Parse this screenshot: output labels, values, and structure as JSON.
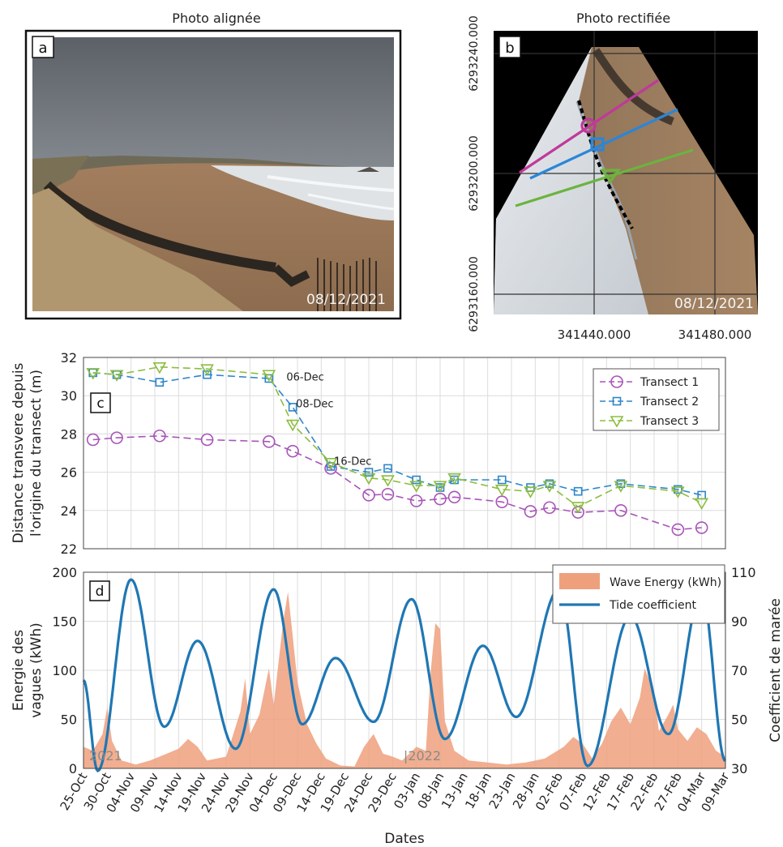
{
  "panels": {
    "a": {
      "letter": "a",
      "title": "Photo alignée",
      "date_stamp": "08/12/2021"
    },
    "b": {
      "letter": "b",
      "title": "Photo rectifiée",
      "date_stamp": "08/12/2021",
      "y_ticks": [
        "6293240.000",
        "6293200.000",
        "6293160.000"
      ],
      "x_ticks": [
        "341440.000",
        "341480.000"
      ],
      "transect_colors": [
        "#c0399a",
        "#2a86d8",
        "#6cb33e"
      ]
    }
  },
  "chart_data": [
    {
      "panel": "c",
      "type": "line",
      "ylabel": "Distance transvere depuis l'origine du transect (m)",
      "ylabel_lines": [
        "Distance transvere depuis",
        "l'origine du transect (m)"
      ],
      "ylim": [
        22,
        32
      ],
      "y_ticks": [
        22,
        24,
        26,
        28,
        30,
        32
      ],
      "grid": true,
      "legend_position": "top-right",
      "annotations": [
        {
          "text": "06-Dec",
          "x": "06-Dec",
          "y": 31.0
        },
        {
          "text": "08-Dec",
          "x": "08-Dec",
          "y": 29.6
        },
        {
          "text": "16-Dec",
          "x": "16-Dec",
          "y": 26.6
        }
      ],
      "series": [
        {
          "name": "Transect 1",
          "color": "#a855b8",
          "marker": "circle",
          "points": [
            [
              "27-Oct",
              27.7
            ],
            [
              "01-Nov",
              27.8
            ],
            [
              "10-Nov",
              27.9
            ],
            [
              "20-Nov",
              27.7
            ],
            [
              "03-Dec",
              27.6
            ],
            [
              "08-Dec",
              27.1
            ],
            [
              "16-Dec",
              26.2
            ],
            [
              "24-Dec",
              24.8
            ],
            [
              "28-Dec",
              24.85
            ],
            [
              "03-Jan",
              24.5
            ],
            [
              "08-Jan",
              24.6
            ],
            [
              "11-Jan",
              24.7
            ],
            [
              "21-Jan",
              24.45
            ],
            [
              "27-Jan",
              23.95
            ],
            [
              "31-Jan",
              24.15
            ],
            [
              "06-Feb",
              23.9
            ],
            [
              "15-Feb",
              24.0
            ],
            [
              "27-Feb",
              23.0
            ],
            [
              "04-Mar",
              23.1
            ]
          ]
        },
        {
          "name": "Transect 2",
          "color": "#2e86c9",
          "marker": "square",
          "points": [
            [
              "27-Oct",
              31.2
            ],
            [
              "01-Nov",
              31.1
            ],
            [
              "10-Nov",
              30.7
            ],
            [
              "20-Nov",
              31.1
            ],
            [
              "03-Dec",
              30.9
            ],
            [
              "08-Dec",
              29.4
            ],
            [
              "16-Dec",
              26.3
            ],
            [
              "24-Dec",
              26.0
            ],
            [
              "28-Dec",
              26.2
            ],
            [
              "03-Jan",
              25.6
            ],
            [
              "08-Jan",
              25.2
            ],
            [
              "11-Jan",
              25.6
            ],
            [
              "21-Jan",
              25.6
            ],
            [
              "27-Jan",
              25.2
            ],
            [
              "31-Jan",
              25.4
            ],
            [
              "06-Feb",
              25.0
            ],
            [
              "15-Feb",
              25.4
            ],
            [
              "27-Feb",
              25.1
            ],
            [
              "04-Mar",
              24.8
            ]
          ]
        },
        {
          "name": "Transect 3",
          "color": "#8cbd3f",
          "marker": "triangle",
          "points": [
            [
              "27-Oct",
              31.2
            ],
            [
              "01-Nov",
              31.1
            ],
            [
              "10-Nov",
              31.5
            ],
            [
              "20-Nov",
              31.4
            ],
            [
              "03-Dec",
              31.1
            ],
            [
              "08-Dec",
              28.5
            ],
            [
              "16-Dec",
              26.5
            ],
            [
              "24-Dec",
              25.7
            ],
            [
              "28-Dec",
              25.6
            ],
            [
              "03-Jan",
              25.3
            ],
            [
              "08-Jan",
              25.3
            ],
            [
              "11-Jan",
              25.7
            ],
            [
              "21-Jan",
              25.1
            ],
            [
              "27-Jan",
              25.0
            ],
            [
              "31-Jan",
              25.3
            ],
            [
              "06-Feb",
              24.2
            ],
            [
              "15-Feb",
              25.3
            ],
            [
              "27-Feb",
              25.0
            ],
            [
              "04-Mar",
              24.4
            ]
          ]
        }
      ]
    },
    {
      "panel": "d",
      "type": "area",
      "xlabel": "Dates",
      "ylabel": "Energie des vagues (kWh)",
      "ylabel_lines": [
        "Energie des",
        "vagues (kWh)"
      ],
      "ylabel_right": "Coefficient de marée",
      "ylim": [
        0,
        200
      ],
      "y_ticks": [
        0,
        50,
        100,
        150,
        200
      ],
      "ylim_right": [
        30,
        110
      ],
      "y_ticks_right": [
        30,
        50,
        70,
        90,
        110
      ],
      "x_start": "25-Oct",
      "x_end": "09-Mar",
      "x_ticks": [
        "25-Oct",
        "30-Oct",
        "04-Nov",
        "09-Nov",
        "14-Nov",
        "19-Nov",
        "24-Nov",
        "29-Nov",
        "04-Dec",
        "09-Dec",
        "14-Dec",
        "19-Dec",
        "24-Dec",
        "29-Dec",
        "03-Jan",
        "08-Jan",
        "13-Jan",
        "18-Jan",
        "23-Jan",
        "28-Jan",
        "02-Feb",
        "07-Feb",
        "12-Feb",
        "17-Feb",
        "22-Feb",
        "27-Feb",
        "04-Mar",
        "09-Mar"
      ],
      "year_labels": [
        {
          "text": "2021",
          "x": "25-Oct"
        },
        {
          "text": "|2022",
          "x": "01-Jan"
        }
      ],
      "grid": true,
      "legend_position": "top-right",
      "series": [
        {
          "name": "Wave Energy (kWh)",
          "color": "#eea07c",
          "kind": "area",
          "points": [
            [
              "25-Oct",
              22
            ],
            [
              "27-Oct",
              18
            ],
            [
              "29-Oct",
              35
            ],
            [
              "30-Oct",
              62
            ],
            [
              "31-Oct",
              28
            ],
            [
              "02-Nov",
              8
            ],
            [
              "05-Nov",
              4
            ],
            [
              "08-Nov",
              8
            ],
            [
              "11-Nov",
              14
            ],
            [
              "14-Nov",
              20
            ],
            [
              "16-Nov",
              30
            ],
            [
              "18-Nov",
              22
            ],
            [
              "20-Nov",
              8
            ],
            [
              "24-Nov",
              12
            ],
            [
              "27-Nov",
              58
            ],
            [
              "28-Nov",
              92
            ],
            [
              "29-Nov",
              35
            ],
            [
              "01-Dec",
              55
            ],
            [
              "03-Dec",
              102
            ],
            [
              "04-Dec",
              65
            ],
            [
              "06-Dec",
              150
            ],
            [
              "07-Dec",
              180
            ],
            [
              "08-Dec",
              135
            ],
            [
              "09-Dec",
              88
            ],
            [
              "11-Dec",
              45
            ],
            [
              "13-Dec",
              25
            ],
            [
              "15-Dec",
              10
            ],
            [
              "18-Dec",
              3
            ],
            [
              "21-Dec",
              2
            ],
            [
              "23-Dec",
              22
            ],
            [
              "25-Dec",
              35
            ],
            [
              "27-Dec",
              15
            ],
            [
              "29-Dec",
              12
            ],
            [
              "31-Dec",
              8
            ],
            [
              "03-Jan",
              22
            ],
            [
              "05-Jan",
              18
            ],
            [
              "06-Jan",
              98
            ],
            [
              "07-Jan",
              148
            ],
            [
              "08-Jan",
              142
            ],
            [
              "09-Jan",
              48
            ],
            [
              "11-Jan",
              18
            ],
            [
              "14-Jan",
              8
            ],
            [
              "18-Jan",
              6
            ],
            [
              "22-Jan",
              4
            ],
            [
              "26-Jan",
              6
            ],
            [
              "30-Jan",
              10
            ],
            [
              "03-Feb",
              22
            ],
            [
              "05-Feb",
              32
            ],
            [
              "07-Feb",
              25
            ],
            [
              "09-Feb",
              10
            ],
            [
              "11-Feb",
              25
            ],
            [
              "13-Feb",
              48
            ],
            [
              "15-Feb",
              62
            ],
            [
              "17-Feb",
              45
            ],
            [
              "19-Feb",
              72
            ],
            [
              "20-Feb",
              102
            ],
            [
              "22-Feb",
              78
            ],
            [
              "23-Feb",
              38
            ],
            [
              "25-Feb",
              55
            ],
            [
              "26-Feb",
              65
            ],
            [
              "27-Feb",
              40
            ],
            [
              "01-Mar",
              28
            ],
            [
              "03-Mar",
              42
            ],
            [
              "05-Mar",
              35
            ],
            [
              "07-Mar",
              18
            ],
            [
              "09-Mar",
              12
            ]
          ]
        },
        {
          "name": "Tide coefficient",
          "color": "#1f77b4",
          "kind": "line",
          "axis": "right",
          "extrema": [
            [
              "25-Oct",
              66
            ],
            [
              "28-Oct",
              29
            ],
            [
              "04-Nov",
              107
            ],
            [
              "11-Nov",
              47
            ],
            [
              "18-Nov",
              82
            ],
            [
              "26-Nov",
              38
            ],
            [
              "04-Dec",
              103
            ],
            [
              "10-Dec",
              48
            ],
            [
              "17-Dec",
              75
            ],
            [
              "25-Dec",
              49
            ],
            [
              "02-Jan",
              99
            ],
            [
              "09-Jan",
              42
            ],
            [
              "17-Jan",
              80
            ],
            [
              "24-Jan",
              51
            ],
            [
              "02-Feb",
              103
            ],
            [
              "08-Feb",
              31
            ],
            [
              "17-Feb",
              92
            ],
            [
              "25-Feb",
              44
            ],
            [
              "04-Mar",
              102
            ],
            [
              "09-Mar",
              33
            ]
          ]
        }
      ]
    }
  ]
}
